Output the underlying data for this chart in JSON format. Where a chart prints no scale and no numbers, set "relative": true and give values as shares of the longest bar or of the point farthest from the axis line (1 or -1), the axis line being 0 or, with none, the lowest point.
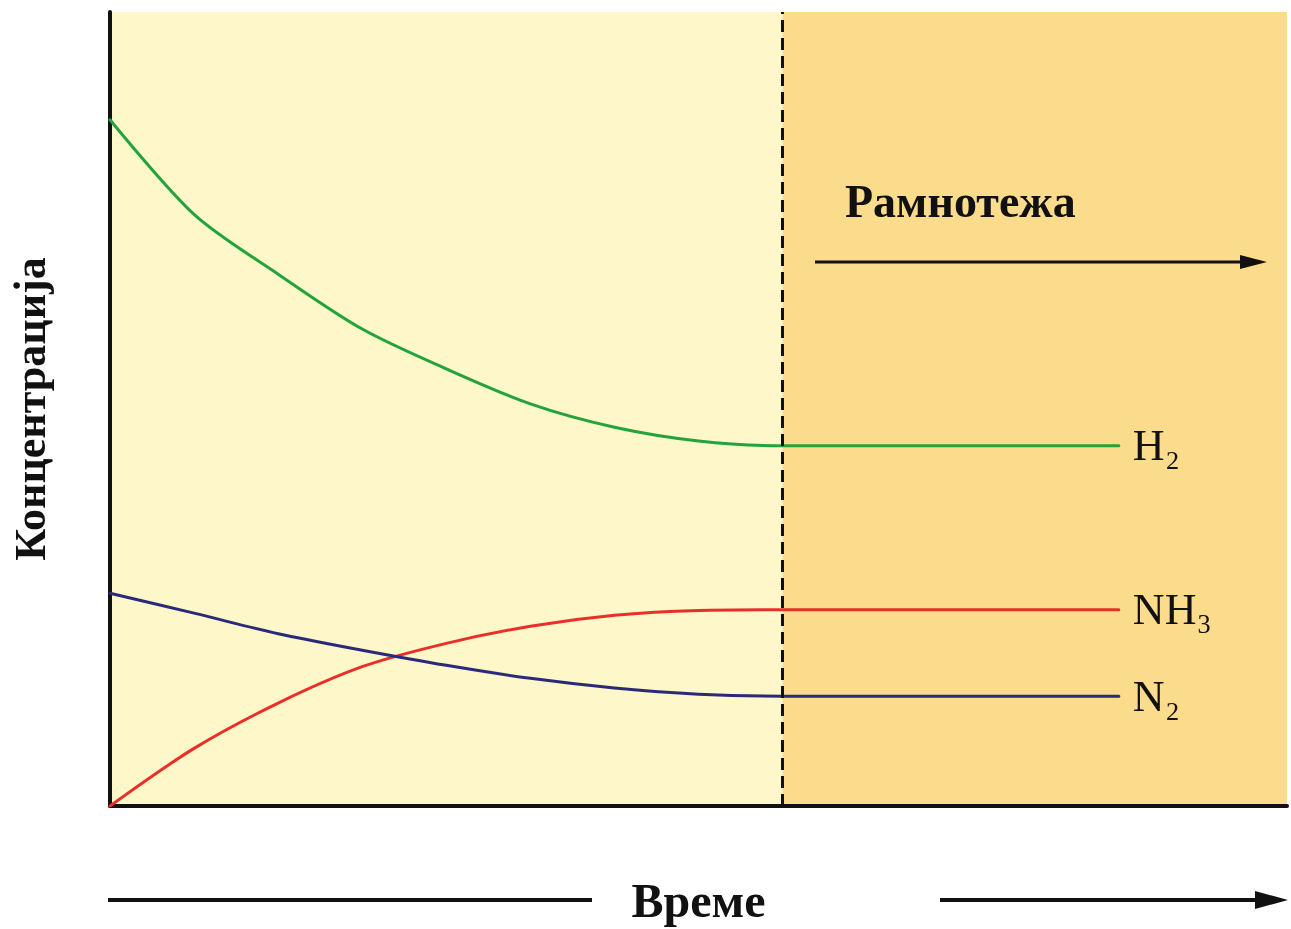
{
  "chart_data": {
    "type": "line",
    "relative": true,
    "xlabel": "Време",
    "ylabel": "Концентрација",
    "categories": [
      null,
      null,
      null,
      null,
      null,
      null,
      null,
      null,
      null,
      null,
      null,
      null,
      null,
      null,
      null
    ],
    "series": [
      {
        "name": "H₂",
        "color": "#23a33b",
        "values": [
          1.0,
          0.862,
          0.775,
          0.695,
          0.637,
          0.586,
          0.552,
          0.532,
          0.525,
          0.525,
          0.525,
          0.525,
          0.525,
          null,
          null
        ]
      },
      {
        "name": "NH₃",
        "color": "#e8302a",
        "values": [
          0,
          0.084,
          0.15,
          0.203,
          0.237,
          0.262,
          0.278,
          0.285,
          0.286,
          0.286,
          0.286,
          0.286,
          0.286,
          null,
          null
        ]
      },
      {
        "name": "N₂",
        "color": "#2b2a7a",
        "values": [
          0.31,
          0.281,
          0.251,
          0.227,
          0.205,
          0.186,
          0.172,
          0.163,
          0.16,
          0.16,
          0.16,
          0.16,
          0.16,
          null,
          null
        ]
      }
    ],
    "annotations": [
      "Рамнотежа"
    ],
    "grid": false,
    "legend": false,
    "marker": "none",
    "line_style": "solid"
  }
}
